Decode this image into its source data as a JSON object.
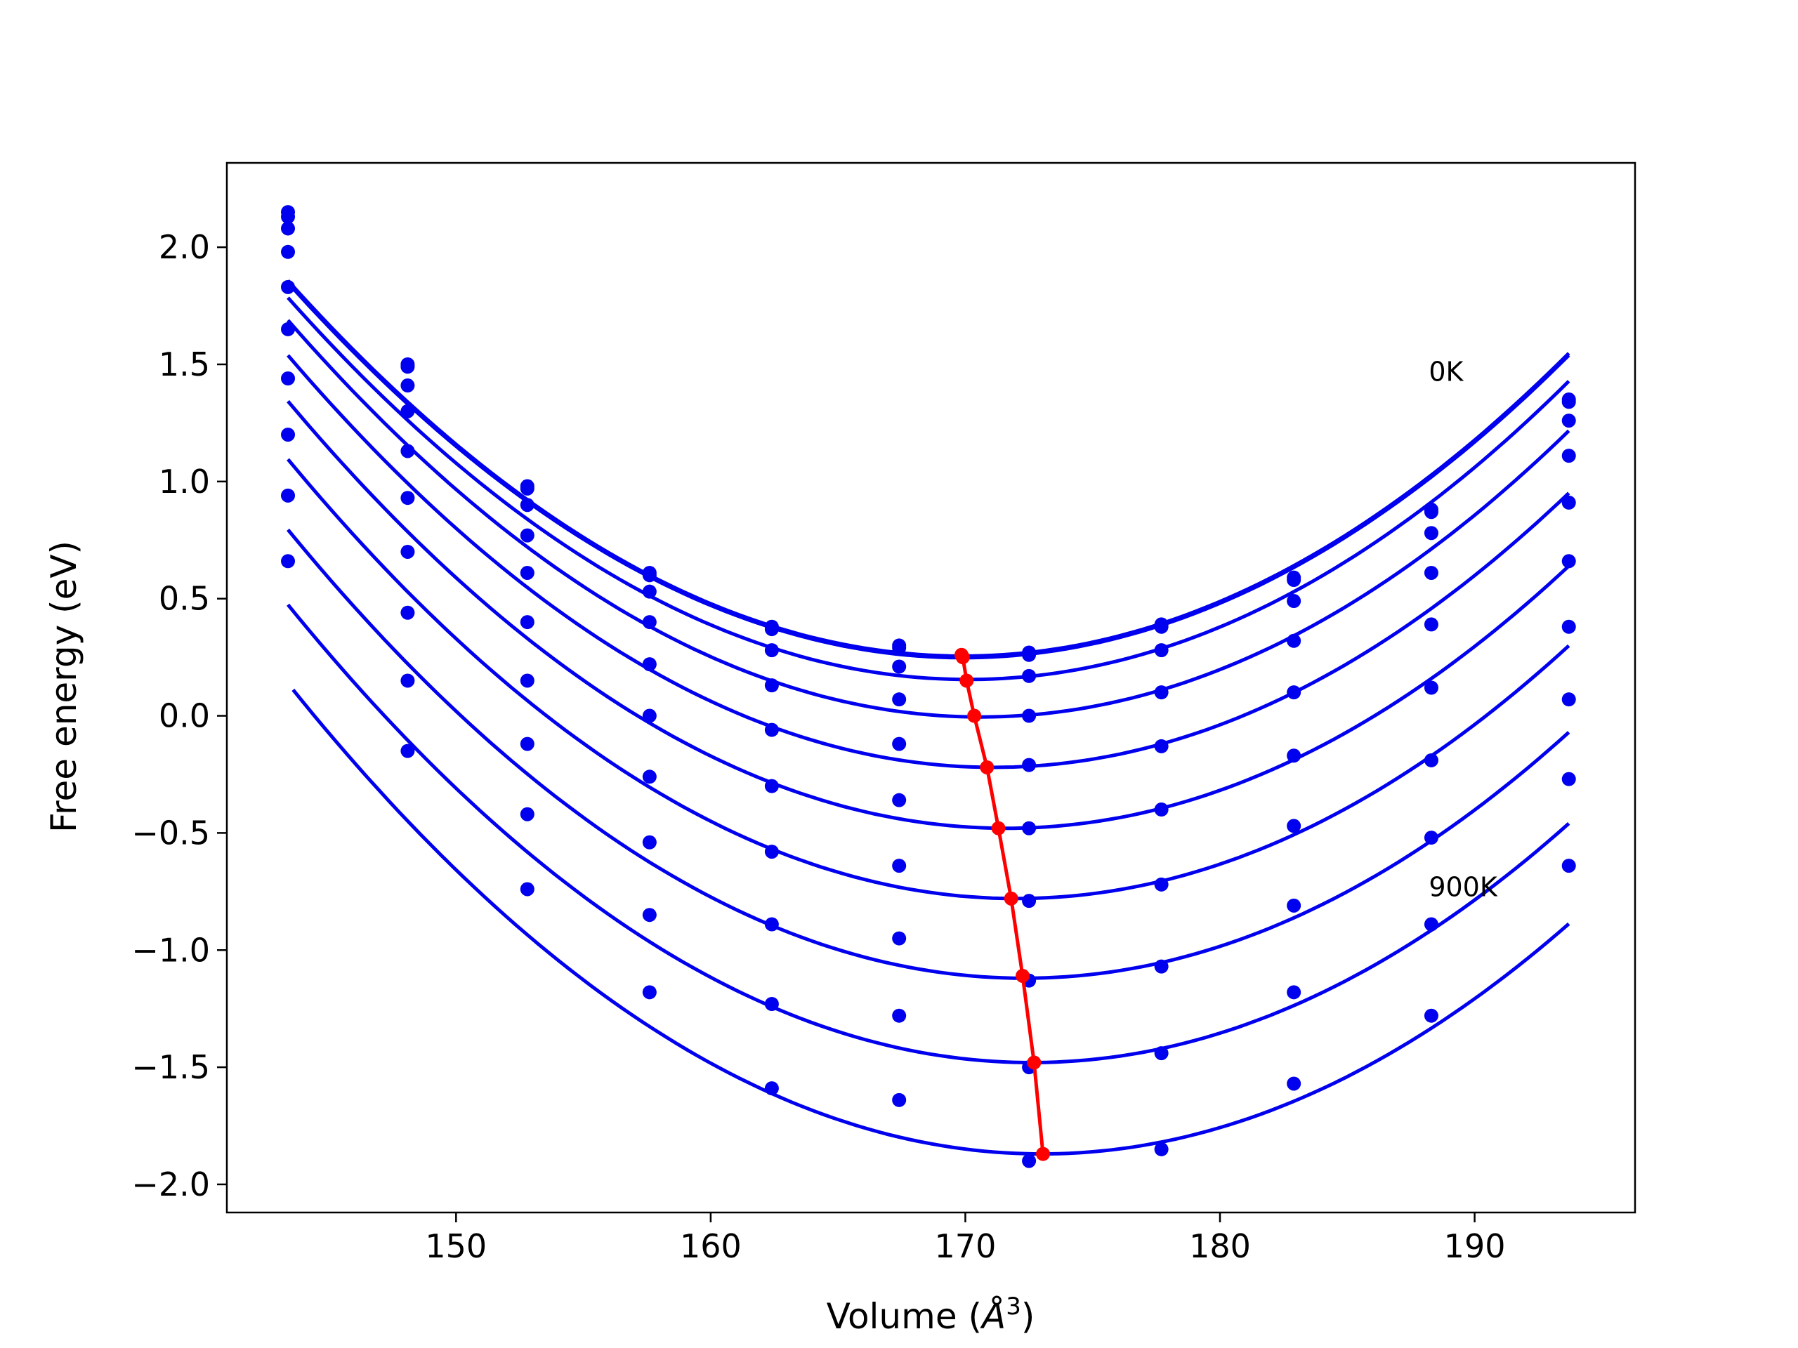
{
  "chart_data": {
    "type": "scatter",
    "title": "",
    "xlabel": "Volume (",
    "xlabel_symbol": "Å",
    "xlabel_exp": "3",
    "xlabel_close": ")",
    "ylabel": "Free energy (eV)",
    "xlim": [
      141.0,
      196.3
    ],
    "ylim": [
      -2.12,
      2.36
    ],
    "x_ticks": [
      150,
      160,
      170,
      180,
      190
    ],
    "x_tick_labels": [
      "150",
      "160",
      "170",
      "180",
      "190"
    ],
    "y_ticks": [
      -2.0,
      -1.5,
      -1.0,
      -0.5,
      0.0,
      0.5,
      1.0,
      1.5,
      2.0
    ],
    "y_tick_labels": [
      "−2.0",
      "−1.5",
      "−1.0",
      "−0.5",
      "0.0",
      "0.5",
      "1.0",
      "1.5",
      "2.0"
    ],
    "grid": false,
    "annotations": [
      {
        "text": "0K",
        "x": 188.2,
        "y": 1.43
      },
      {
        "text": "900K",
        "x": 188.2,
        "y": -0.77
      }
    ],
    "volumes": [
      143.4,
      148.1,
      152.8,
      157.6,
      162.4,
      167.4,
      172.5,
      177.7,
      182.9,
      188.3,
      193.7
    ],
    "series": [
      {
        "curve": {
          "a": 0.002282,
          "v0": 169.9,
          "f0": 0.255,
          "x_start": 143.4,
          "x_end": 193.7
        },
        "points": [
          2.15,
          1.5,
          0.98,
          0.61,
          0.38,
          0.3,
          0.27,
          0.39,
          0.59,
          0.88,
          1.35
        ],
        "min": [
          169.85,
          0.26
        ]
      },
      {
        "curve": {
          "a": 0.002279,
          "v0": 169.9,
          "f0": 0.248,
          "x_start": 143.4,
          "x_end": 193.7
        },
        "points": [
          2.13,
          1.49,
          0.97,
          0.6,
          0.37,
          0.29,
          0.26,
          0.38,
          0.58,
          0.87,
          1.34
        ],
        "min": [
          169.9,
          0.25
        ]
      },
      {
        "curve": {
          "a": 0.002286,
          "v0": 170.1,
          "f0": 0.155,
          "x_start": 143.4,
          "x_end": 193.7
        },
        "points": [
          2.08,
          1.41,
          0.9,
          0.53,
          0.28,
          0.21,
          0.17,
          0.28,
          0.49,
          0.78,
          1.26
        ],
        "min": [
          170.05,
          0.15
        ]
      },
      {
        "curve": {
          "a": 0.002289,
          "v0": 170.6,
          "f0": -0.005,
          "x_start": 143.4,
          "x_end": 193.7
        },
        "points": [
          1.98,
          1.3,
          0.77,
          0.4,
          0.13,
          0.07,
          0.0,
          0.1,
          0.32,
          0.61,
          1.11
        ],
        "min": [
          170.35,
          0.0
        ]
      },
      {
        "curve": {
          "a": 0.002292,
          "v0": 171.1,
          "f0": -0.22,
          "x_start": 143.4,
          "x_end": 193.7
        },
        "points": [
          1.83,
          1.13,
          0.61,
          0.22,
          -0.06,
          -0.12,
          -0.21,
          -0.13,
          0.1,
          0.39,
          0.91
        ],
        "min": [
          170.85,
          -0.22
        ]
      },
      {
        "curve": {
          "a": 0.002292,
          "v0": 171.6,
          "f0": -0.48,
          "x_start": 143.4,
          "x_end": 193.7
        },
        "points": [
          1.65,
          0.93,
          0.4,
          0.0,
          -0.3,
          -0.36,
          -0.48,
          -0.4,
          -0.17,
          0.12,
          0.66
        ],
        "min": [
          171.3,
          -0.48
        ]
      },
      {
        "curve": {
          "a": 0.002292,
          "v0": 172.0,
          "f0": -0.78,
          "x_start": 143.4,
          "x_end": 193.7
        },
        "points": [
          1.44,
          0.7,
          0.15,
          -0.26,
          -0.58,
          -0.64,
          -0.79,
          -0.72,
          -0.47,
          -0.19,
          0.38
        ],
        "min": [
          171.8,
          -0.78
        ]
      },
      {
        "curve": {
          "a": 0.002292,
          "v0": 172.3,
          "f0": -1.12,
          "x_start": 143.4,
          "x_end": 193.7
        },
        "points": [
          1.2,
          0.44,
          -0.12,
          -0.54,
          -0.89,
          -0.95,
          -1.13,
          -1.07,
          -0.81,
          -0.52,
          0.07
        ],
        "min": [
          172.25,
          -1.11
        ]
      },
      {
        "curve": {
          "a": 0.002292,
          "v0": 172.6,
          "f0": -1.48,
          "x_start": 143.4,
          "x_end": 193.7
        },
        "points": [
          0.94,
          0.15,
          -0.42,
          -0.85,
          -1.23,
          -1.28,
          -1.5,
          -1.44,
          -1.18,
          -0.89,
          -0.27
        ],
        "min": [
          172.7,
          -1.48
        ]
      },
      {
        "curve": {
          "a": 0.002292,
          "v0": 173.0,
          "f0": -1.87,
          "x_start": 143.6,
          "x_end": 193.7
        },
        "points": [
          0.66,
          -0.15,
          -0.74,
          -1.18,
          -1.59,
          -1.64,
          -1.9,
          -1.85,
          -1.57,
          -1.28,
          -0.64
        ],
        "min": [
          173.05,
          -1.87
        ]
      }
    ],
    "colors": {
      "curves": "#0000ee",
      "points": "#0000ee",
      "minima": "#ff0000",
      "axes": "#000000"
    }
  }
}
